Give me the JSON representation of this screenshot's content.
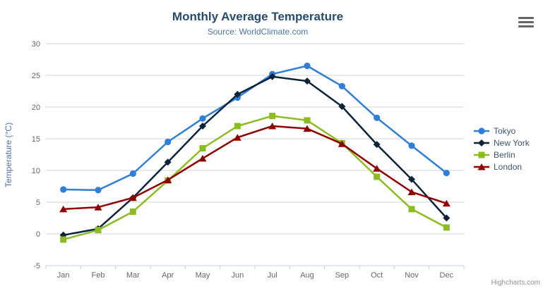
{
  "header": {
    "title": "Monthly Average Temperature",
    "subtitle": "Source: WorldClimate.com"
  },
  "toolbar": {
    "export_menu_icon": "hamburger-menu-icon"
  },
  "credits": {
    "label": "Highcharts.com"
  },
  "colors": {
    "title": "#274b6d",
    "subtitle": "#4d759e",
    "axis_label": "#666666",
    "axis_title": "#55759e",
    "grid_line": "#d0d0d0",
    "axis_line": "#c0d0e0",
    "legend_text": "#3e576f",
    "credits_text": "#909090",
    "tokyo": "#2f7ed8",
    "new_york": "#0d233a",
    "berlin": "#8bbc21",
    "london": "#910000"
  },
  "chart_data": {
    "type": "line",
    "title": "Monthly Average Temperature",
    "subtitle": "Source: WorldClimate.com",
    "categories": [
      "Jan",
      "Feb",
      "Mar",
      "Apr",
      "May",
      "Jun",
      "Jul",
      "Aug",
      "Sep",
      "Oct",
      "Nov",
      "Dec"
    ],
    "series": [
      {
        "name": "Tokyo",
        "color": "#2f7ed8",
        "marker": "circle",
        "values": [
          7.0,
          6.9,
          9.5,
          14.5,
          18.2,
          21.5,
          25.2,
          26.5,
          23.3,
          18.3,
          13.9,
          9.6
        ]
      },
      {
        "name": "New York",
        "color": "#0d233a",
        "marker": "diamond",
        "values": [
          -0.2,
          0.8,
          5.7,
          11.3,
          17.0,
          22.0,
          24.8,
          24.1,
          20.1,
          14.1,
          8.6,
          2.5
        ]
      },
      {
        "name": "Berlin",
        "color": "#8bbc21",
        "marker": "square",
        "values": [
          -0.9,
          0.6,
          3.5,
          8.4,
          13.5,
          17.0,
          18.6,
          17.9,
          14.3,
          9.0,
          3.9,
          1.0
        ]
      },
      {
        "name": "London",
        "color": "#910000",
        "marker": "triangle",
        "values": [
          3.9,
          4.2,
          5.7,
          8.5,
          11.9,
          15.2,
          17.0,
          16.6,
          14.2,
          10.3,
          6.6,
          4.8
        ]
      }
    ],
    "xlabel": "",
    "ylabel": "Temperature (°C)",
    "ylim": [
      -5,
      30
    ],
    "yticks": [
      -5,
      0,
      5,
      10,
      15,
      20,
      25,
      30
    ],
    "grid": "horizontal",
    "legend_position": "right"
  }
}
